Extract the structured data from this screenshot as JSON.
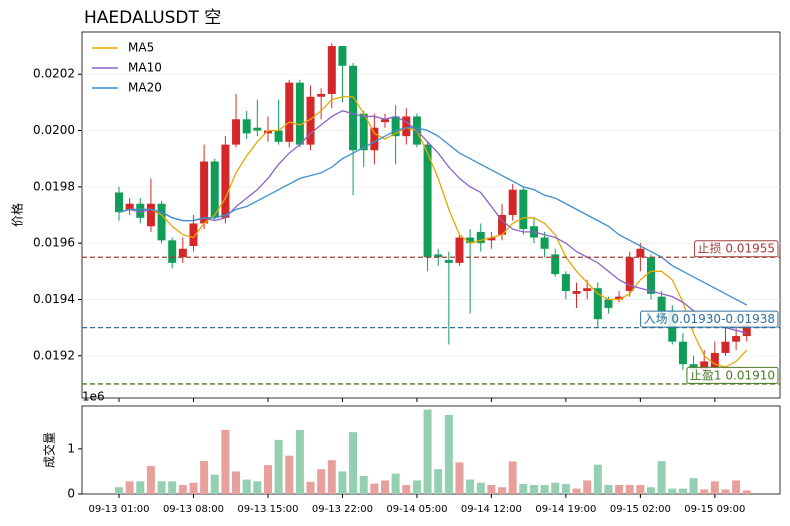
{
  "chart_data": [
    {
      "type": "candlestick",
      "title": "HAEDALUSDT 空",
      "ylabel": "价格",
      "categories": [
        "09-13 01:00",
        null,
        null,
        null,
        null,
        null,
        null,
        "09-13 08:00",
        null,
        null,
        null,
        null,
        null,
        null,
        "09-13 15:00",
        null,
        null,
        null,
        null,
        null,
        null,
        "09-13 22:00",
        null,
        null,
        null,
        null,
        null,
        null,
        "09-14 05:00",
        null,
        null,
        null,
        null,
        null,
        null,
        "09-14 12:00",
        null,
        null,
        null,
        null,
        null,
        null,
        "09-14 19:00",
        null,
        null,
        null,
        null,
        null,
        null,
        "09-15 02:00",
        null,
        null,
        null,
        null,
        null,
        null,
        "09-15 09:00",
        null,
        null,
        null
      ],
      "open": [
        0.01978,
        0.01972,
        0.01974,
        0.01966,
        0.01974,
        0.01961,
        0.01955,
        0.01959,
        0.01967,
        0.01989,
        0.01969,
        0.01995,
        0.02004,
        0.02001,
        0.01999,
        0.02,
        0.01996,
        0.02017,
        0.01995,
        0.02012,
        0.02013,
        0.0203,
        0.02023,
        0.02006,
        0.01993,
        0.02003,
        0.02005,
        0.01998,
        0.02005,
        0.01995,
        0.01956,
        0.01954,
        0.01953,
        0.01962,
        0.01964,
        0.01961,
        0.01963,
        0.0197,
        0.01979,
        0.01966,
        0.01962,
        0.01956,
        0.01949,
        0.01942,
        0.01943,
        0.01944,
        0.0194,
        0.0194,
        0.01943,
        0.01955,
        0.01955,
        0.01941,
        0.01936,
        0.01925,
        0.01917,
        0.01915,
        0.01916,
        0.01921,
        0.01925,
        0.01927
      ],
      "high": [
        0.0198,
        0.01976,
        0.01976,
        0.01983,
        0.01975,
        0.01962,
        0.01962,
        0.0197,
        0.01995,
        0.0199,
        0.01998,
        0.02013,
        0.02007,
        0.02011,
        0.02005,
        0.02011,
        0.02018,
        0.02018,
        0.02016,
        0.02015,
        0.02031,
        0.0203,
        0.02024,
        0.02007,
        0.02006,
        0.02006,
        0.02009,
        0.02008,
        0.02006,
        0.01996,
        0.01958,
        0.01957,
        0.01963,
        0.01965,
        0.01967,
        0.01964,
        0.01974,
        0.01981,
        0.0198,
        0.01969,
        0.01964,
        0.01958,
        0.0195,
        0.01946,
        0.01947,
        0.01946,
        0.01941,
        0.01943,
        0.01957,
        0.0196,
        0.01956,
        0.01943,
        0.01938,
        0.01928,
        0.0192,
        0.01922,
        0.01925,
        0.0193,
        0.01934,
        0.01935
      ],
      "low": [
        0.01968,
        0.0197,
        0.01967,
        0.01964,
        0.0196,
        0.01951,
        0.01953,
        0.01957,
        0.01965,
        0.01968,
        0.01967,
        0.01994,
        0.01997,
        0.01998,
        0.01996,
        0.01995,
        0.01994,
        0.01994,
        0.01993,
        0.02004,
        0.02008,
        0.0201,
        0.01977,
        0.01987,
        0.01988,
        0.02001,
        0.01988,
        0.01995,
        0.01994,
        0.0195,
        0.01952,
        0.01924,
        0.01952,
        0.01935,
        0.01957,
        0.01958,
        0.01961,
        0.01968,
        0.01963,
        0.0196,
        0.01955,
        0.01948,
        0.0194,
        0.01937,
        0.0194,
        0.0193,
        0.01935,
        0.01939,
        0.01941,
        0.0195,
        0.0194,
        0.0193,
        0.01924,
        0.01915,
        0.01912,
        0.01912,
        0.01914,
        0.0192,
        0.01922,
        0.01925
      ],
      "close": [
        0.01971,
        0.01974,
        0.01969,
        0.01974,
        0.01961,
        0.01953,
        0.01958,
        0.01967,
        0.01989,
        0.01969,
        0.01995,
        0.02004,
        0.01999,
        0.02,
        0.02,
        0.01996,
        0.02017,
        0.01995,
        0.02012,
        0.02013,
        0.0203,
        0.02023,
        0.01993,
        0.01993,
        0.02001,
        0.02004,
        0.01998,
        0.02005,
        0.01995,
        0.01955,
        0.01955,
        0.01953,
        0.01962,
        0.0196,
        0.0196,
        0.01962,
        0.0197,
        0.01979,
        0.01965,
        0.01962,
        0.01958,
        0.01949,
        0.01943,
        0.01943,
        0.01944,
        0.01933,
        0.01937,
        0.01941,
        0.01955,
        0.01958,
        0.01942,
        0.01933,
        0.01925,
        0.01917,
        0.01915,
        0.01918,
        0.01921,
        0.01925,
        0.01927,
        0.01931
      ],
      "up_color": "#d62728",
      "down_color": "#0f9d58",
      "series": [
        {
          "name": "MA5",
          "color": "#e6a800",
          "values": [
            0.01971,
            0.01972,
            0.01972,
            0.01972,
            0.0197,
            0.01966,
            0.01963,
            0.01962,
            0.01967,
            0.0197,
            0.01976,
            0.01985,
            0.01991,
            0.01996,
            0.02,
            0.02,
            0.02003,
            0.02002,
            0.02004,
            0.02007,
            0.02011,
            0.02012,
            0.02012,
            0.02006,
            0.01999,
            0.01997,
            0.01999,
            0.02001,
            0.02,
            0.01992,
            0.01983,
            0.01972,
            0.01963,
            0.0196,
            0.01961,
            0.01962,
            0.01963,
            0.01967,
            0.01969,
            0.01969,
            0.01967,
            0.01963,
            0.01955,
            0.0195,
            0.01946,
            0.01942,
            0.0194,
            0.0194,
            0.01942,
            0.01947,
            0.0195,
            0.0195,
            0.01947,
            0.01939,
            0.01928,
            0.0192,
            0.01917,
            0.01916,
            0.01918,
            0.01922
          ]
        },
        {
          "name": "MA10",
          "color": "#8a63c7",
          "values": [
            0.01971,
            0.01972,
            0.01971,
            0.01972,
            0.01971,
            0.01969,
            0.01968,
            0.01968,
            0.01969,
            0.01968,
            0.01969,
            0.01973,
            0.01976,
            0.01979,
            0.01983,
            0.01988,
            0.01992,
            0.01995,
            0.01999,
            0.02002,
            0.02005,
            0.02007,
            0.02006,
            0.02005,
            0.02005,
            0.02004,
            0.02005,
            0.02003,
            0.02,
            0.01996,
            0.01992,
            0.01987,
            0.01983,
            0.0198,
            0.01978,
            0.01973,
            0.01968,
            0.01965,
            0.01964,
            0.01964,
            0.01963,
            0.01962,
            0.0196,
            0.01957,
            0.01955,
            0.01953,
            0.0195,
            0.01947,
            0.01945,
            0.01944,
            0.01943,
            0.01942,
            0.01941,
            0.01939,
            0.01936,
            0.01934,
            0.01932,
            0.0193,
            0.01929,
            0.01928
          ]
        },
        {
          "name": "MA20",
          "color": "#3b8ed0",
          "values": [
            0.01971,
            0.01972,
            0.01972,
            0.01972,
            0.01971,
            0.01969,
            0.01968,
            0.01968,
            0.01969,
            0.01969,
            0.0197,
            0.01972,
            0.01973,
            0.01975,
            0.01977,
            0.01979,
            0.01981,
            0.01983,
            0.01984,
            0.01985,
            0.01987,
            0.0199,
            0.01992,
            0.01994,
            0.01996,
            0.01998,
            0.02,
            0.02001,
            0.02001,
            0.02,
            0.01998,
            0.01995,
            0.01992,
            0.0199,
            0.01988,
            0.01986,
            0.01984,
            0.01982,
            0.0198,
            0.01979,
            0.01977,
            0.01976,
            0.01974,
            0.01972,
            0.0197,
            0.01968,
            0.01966,
            0.01963,
            0.01961,
            0.01959,
            0.01957,
            0.01955,
            0.01952,
            0.0195,
            0.01948,
            0.01946,
            0.01944,
            0.01942,
            0.0194,
            0.01938
          ]
        }
      ],
      "levels": [
        {
          "label": "止损 0.01955",
          "value": 0.01955,
          "color": "#a0403a"
        },
        {
          "label": "入场 0.01930-0.01938",
          "value": 0.0193,
          "color": "#2f6f9f"
        },
        {
          "label": "止盈1 0.01910",
          "value": 0.0191,
          "color": "#4a7a2a"
        }
      ],
      "ylim": [
        0.01905,
        0.02035
      ],
      "yticks": [
        0.0192,
        0.0194,
        0.0196,
        0.0198,
        {
          "value": 0.02,
          "label": "0.0200"
        },
        0.0202
      ],
      "grid": true,
      "legend": "upper left"
    },
    {
      "type": "bar",
      "ylabel": "成交量",
      "offset_label": "1e6",
      "values": [
        0.15,
        0.28,
        0.28,
        0.62,
        0.28,
        0.28,
        0.2,
        0.25,
        0.73,
        0.43,
        1.42,
        0.5,
        0.32,
        0.28,
        0.64,
        1.2,
        0.85,
        1.42,
        0.27,
        0.55,
        0.75,
        0.5,
        1.37,
        0.4,
        0.23,
        0.3,
        0.45,
        0.2,
        0.3,
        1.87,
        0.55,
        1.75,
        0.7,
        0.32,
        0.25,
        0.2,
        0.15,
        0.72,
        0.22,
        0.2,
        0.2,
        0.25,
        0.22,
        0.12,
        0.3,
        0.65,
        0.2,
        0.2,
        0.2,
        0.2,
        0.15,
        0.73,
        0.12,
        0.12,
        0.35,
        0.1,
        0.28,
        0.1,
        0.3,
        0.08
      ],
      "up_color": "#e8a09c",
      "down_color": "#93cfb0",
      "ylim": [
        0,
        1.95
      ],
      "yticks": [
        0,
        1
      ]
    }
  ]
}
